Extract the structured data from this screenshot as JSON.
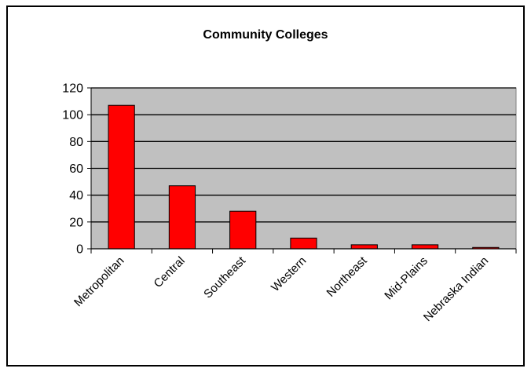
{
  "chart_data": {
    "type": "bar",
    "title": "Community Colleges",
    "xlabel": "",
    "ylabel": "",
    "categories": [
      "Metropolitan",
      "Central",
      "Southeast",
      "Western",
      "Northeast",
      "Mid-Plains",
      "Nebraska Indian"
    ],
    "values": [
      107,
      47,
      28,
      8,
      3,
      3,
      1
    ],
    "ylim": [
      0,
      120
    ],
    "yticks": [
      "0",
      "20",
      "40",
      "60",
      "80",
      "100",
      "120"
    ],
    "grid": true,
    "legend": "none",
    "colors": {
      "bar": "#ff0000",
      "bar_stroke": "#000000",
      "plot_background": "#c0c0c0",
      "gridline": "#000000"
    }
  }
}
